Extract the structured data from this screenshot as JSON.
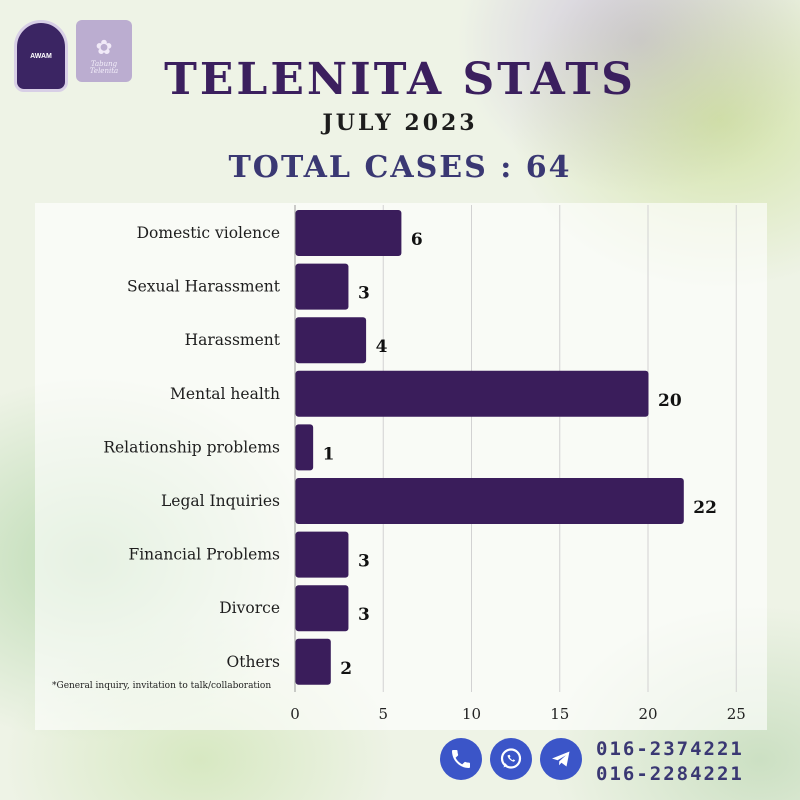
{
  "logos": {
    "aws_label": "AWAM",
    "tt_text": "Tabung Telenita"
  },
  "header": {
    "title": "TELENITA STATS",
    "subtitle": "JULY 2023",
    "total": "TOTAL CASES : 64"
  },
  "chart_data": {
    "type": "bar",
    "orientation": "horizontal",
    "categories": [
      "Domestic violence",
      "Sexual Harassment",
      "Harassment",
      "Mental health",
      "Relationship problems",
      "Legal Inquiries",
      "Financial Problems",
      "Divorce",
      "Others"
    ],
    "values": [
      6,
      3,
      4,
      20,
      1,
      22,
      3,
      3,
      2
    ],
    "xlim": [
      0,
      25
    ],
    "xticks": [
      0,
      5,
      10,
      15,
      20,
      25
    ],
    "grid": true,
    "bar_color": "#3a1d5b",
    "footnote": "*General inquiry, invitation to talk/collaboration"
  },
  "contact": {
    "icons": [
      "phone-icon",
      "whatsapp-icon",
      "telegram-icon"
    ],
    "phone1": "016-2374221",
    "phone2": "016-2284221",
    "icon_color": "#3b55c8"
  }
}
